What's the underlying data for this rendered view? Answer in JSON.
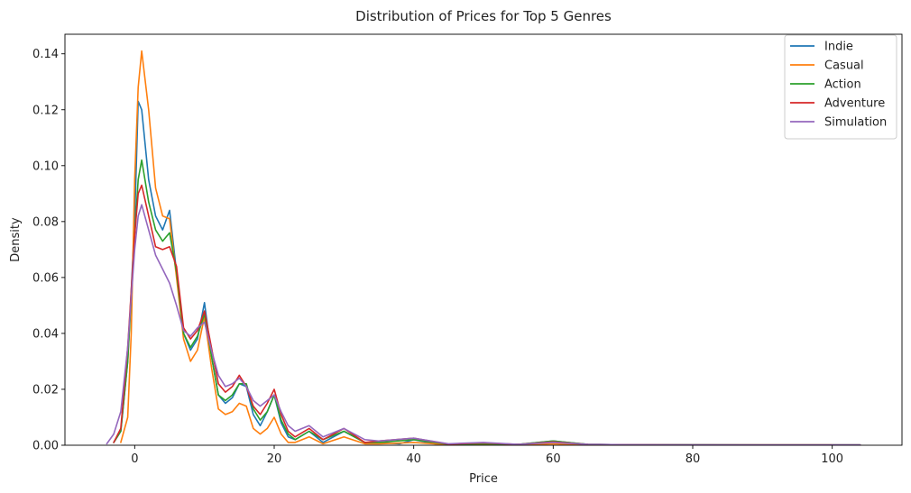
{
  "chart_data": {
    "type": "line",
    "title": "Distribution of Prices for Top 5 Genres",
    "xlabel": "Price",
    "ylabel": "Density",
    "xlim": [
      -10,
      110
    ],
    "ylim": [
      0,
      0.147
    ],
    "xticks": [
      0,
      20,
      40,
      60,
      80,
      100
    ],
    "yticks": [
      0.0,
      0.02,
      0.04,
      0.06,
      0.08,
      0.1,
      0.12,
      0.14
    ],
    "xtick_labels": [
      "0",
      "20",
      "40",
      "60",
      "80",
      "100"
    ],
    "ytick_labels": [
      "0.00",
      "0.02",
      "0.04",
      "0.06",
      "0.08",
      "0.10",
      "0.12",
      "0.14"
    ],
    "grid": false,
    "legend_position": "top-right",
    "series": [
      {
        "name": "Indie",
        "color": "#1f77b4",
        "x": [
          -3,
          -2,
          -1,
          0,
          0.5,
          1,
          2,
          3,
          4,
          5,
          6,
          7,
          8,
          9,
          10,
          11,
          12,
          13,
          14,
          15,
          16,
          17,
          18,
          19,
          20,
          21,
          22,
          23,
          25,
          27,
          30,
          33,
          35,
          38,
          40,
          43,
          45,
          50,
          55,
          60,
          65,
          70,
          80,
          90,
          100,
          104
        ],
        "y": [
          0.001,
          0.005,
          0.03,
          0.08,
          0.123,
          0.12,
          0.095,
          0.082,
          0.077,
          0.084,
          0.062,
          0.04,
          0.034,
          0.038,
          0.051,
          0.032,
          0.018,
          0.015,
          0.017,
          0.022,
          0.021,
          0.011,
          0.007,
          0.012,
          0.018,
          0.008,
          0.003,
          0.002,
          0.005,
          0.001,
          0.005,
          0.001,
          0.001,
          0.0005,
          0.002,
          0.0005,
          0.0003,
          0.0005,
          0.0003,
          0.0015,
          0.0003,
          0.0002,
          0.0002,
          0.0001,
          0.0001,
          0.0001
        ]
      },
      {
        "name": "Casual",
        "color": "#ff7f0e",
        "x": [
          -2,
          -1,
          -0.5,
          0,
          0.5,
          1,
          2,
          3,
          4,
          5,
          6,
          7,
          8,
          9,
          10,
          11,
          12,
          13,
          14,
          15,
          16,
          17,
          18,
          19,
          20,
          21,
          22,
          23,
          25,
          27,
          30,
          33,
          35,
          40,
          45,
          50,
          55,
          60,
          65,
          70,
          80,
          90,
          100
        ],
        "y": [
          0.001,
          0.01,
          0.04,
          0.095,
          0.128,
          0.141,
          0.12,
          0.092,
          0.082,
          0.081,
          0.06,
          0.038,
          0.03,
          0.034,
          0.046,
          0.028,
          0.013,
          0.011,
          0.012,
          0.015,
          0.014,
          0.006,
          0.004,
          0.006,
          0.01,
          0.004,
          0.001,
          0.001,
          0.003,
          0.0005,
          0.003,
          0.0005,
          0.0005,
          0.001,
          0.0002,
          0.0003,
          0.0001,
          0.0005,
          0.0001,
          0.0001,
          0.0001,
          0.0001,
          0.0001
        ]
      },
      {
        "name": "Action",
        "color": "#2ca02c",
        "x": [
          -3,
          -2,
          -1,
          0,
          0.5,
          1,
          2,
          3,
          4,
          5,
          6,
          7,
          8,
          9,
          10,
          11,
          12,
          13,
          14,
          15,
          16,
          17,
          18,
          19,
          20,
          21,
          22,
          23,
          25,
          27,
          30,
          33,
          35,
          40,
          45,
          50,
          55,
          60,
          65,
          70,
          80,
          90,
          100,
          104
        ],
        "y": [
          0.001,
          0.005,
          0.03,
          0.075,
          0.095,
          0.102,
          0.087,
          0.077,
          0.073,
          0.076,
          0.062,
          0.04,
          0.035,
          0.039,
          0.047,
          0.032,
          0.018,
          0.016,
          0.018,
          0.022,
          0.022,
          0.013,
          0.009,
          0.012,
          0.018,
          0.009,
          0.004,
          0.002,
          0.005,
          0.002,
          0.005,
          0.001,
          0.001,
          0.002,
          0.0003,
          0.0005,
          0.0003,
          0.0015,
          0.0003,
          0.0002,
          0.0001,
          0.0001,
          0.0001,
          0.0001
        ]
      },
      {
        "name": "Adventure",
        "color": "#d62728",
        "x": [
          -3,
          -2,
          -1,
          0,
          0.5,
          1,
          2,
          3,
          4,
          5,
          6,
          7,
          8,
          9,
          10,
          11,
          12,
          13,
          14,
          15,
          16,
          17,
          18,
          19,
          20,
          21,
          22,
          23,
          25,
          27,
          30,
          33,
          35,
          40,
          45,
          50,
          55,
          60,
          65,
          70,
          80,
          90,
          100,
          104
        ],
        "y": [
          0.001,
          0.006,
          0.035,
          0.075,
          0.09,
          0.093,
          0.082,
          0.071,
          0.07,
          0.071,
          0.064,
          0.042,
          0.038,
          0.041,
          0.048,
          0.035,
          0.022,
          0.019,
          0.021,
          0.025,
          0.021,
          0.014,
          0.011,
          0.015,
          0.02,
          0.011,
          0.005,
          0.003,
          0.006,
          0.002,
          0.006,
          0.001,
          0.0015,
          0.0025,
          0.0004,
          0.0008,
          0.0003,
          0.0012,
          0.0003,
          0.0002,
          0.0001,
          0.0001,
          0.0001,
          0.0001
        ]
      },
      {
        "name": "Simulation",
        "color": "#9467bd",
        "x": [
          -4,
          -3,
          -2,
          -1,
          0,
          0.5,
          1,
          2,
          3,
          4,
          5,
          6,
          7,
          8,
          9,
          10,
          11,
          12,
          13,
          14,
          15,
          16,
          17,
          18,
          19,
          20,
          21,
          22,
          23,
          25,
          27,
          30,
          33,
          35,
          40,
          45,
          50,
          55,
          60,
          65,
          70,
          80,
          90,
          100,
          104
        ],
        "y": [
          0.0005,
          0.004,
          0.012,
          0.035,
          0.07,
          0.082,
          0.086,
          0.077,
          0.068,
          0.063,
          0.058,
          0.05,
          0.041,
          0.039,
          0.042,
          0.044,
          0.034,
          0.025,
          0.021,
          0.022,
          0.024,
          0.021,
          0.016,
          0.014,
          0.016,
          0.018,
          0.012,
          0.007,
          0.005,
          0.007,
          0.003,
          0.006,
          0.002,
          0.0015,
          0.0025,
          0.0005,
          0.001,
          0.0003,
          0.001,
          0.0003,
          0.0002,
          0.0001,
          0.0001,
          0.0001,
          0.0001
        ]
      }
    ]
  }
}
